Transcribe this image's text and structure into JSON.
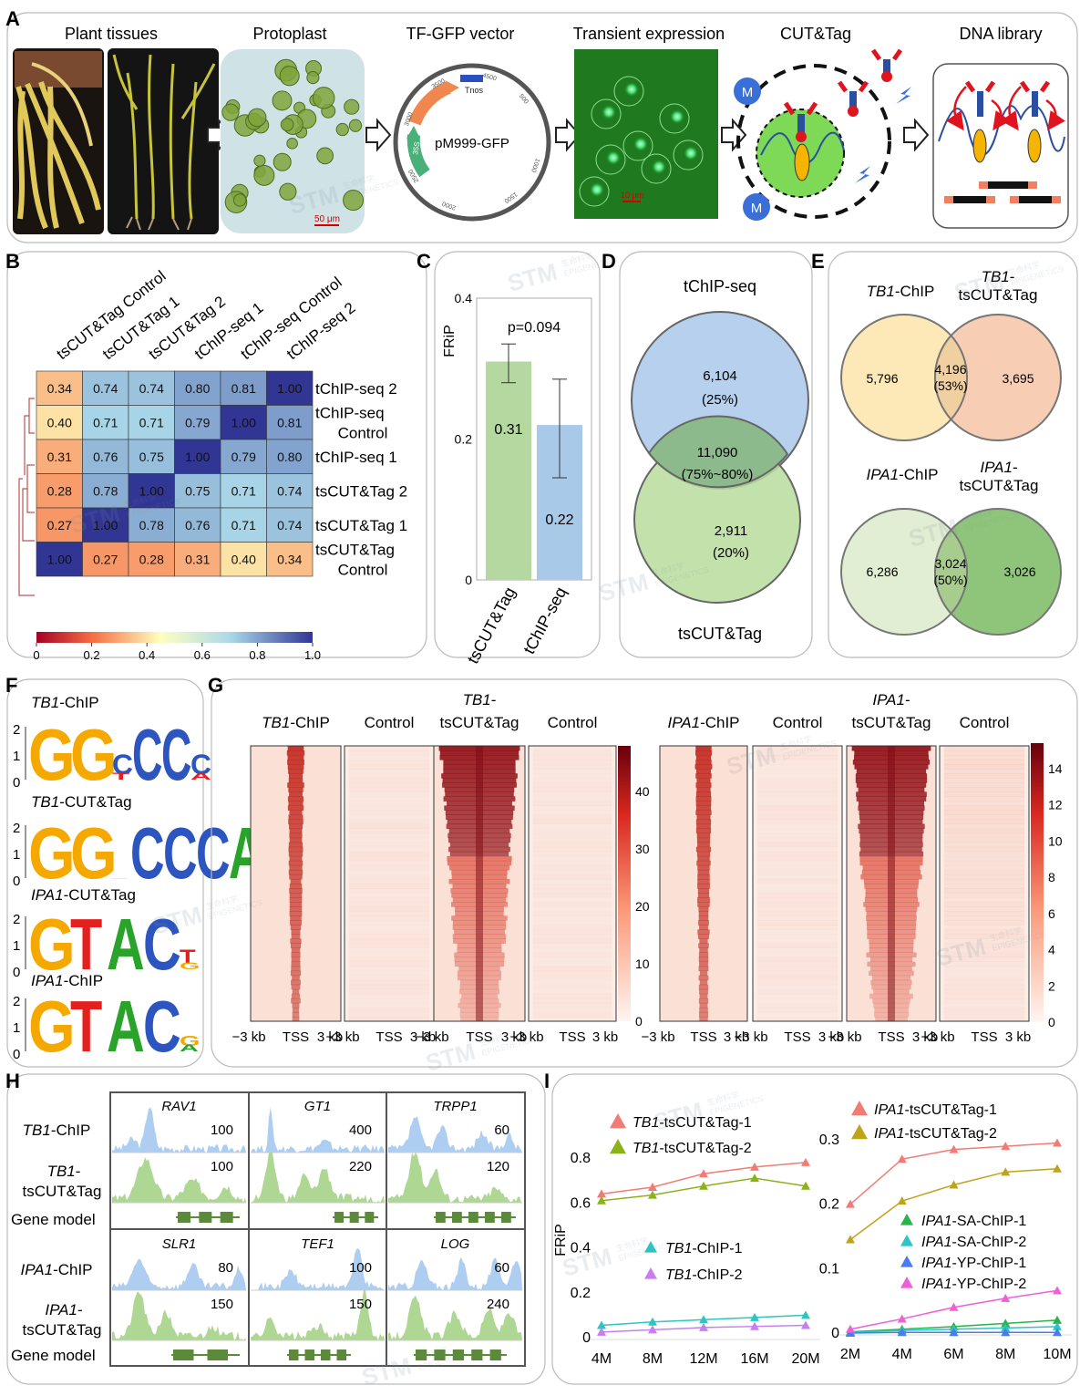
{
  "panelA": {
    "letter": "A",
    "steps": [
      "Plant tissues",
      "Protoplast",
      "TF-GFP vector",
      "Transient expression",
      "CUT&Tag",
      "DNA library"
    ],
    "vector_name": "pM999-GFP",
    "vector_features": [
      "GFP",
      "Tnos",
      "35S"
    ],
    "vector_ticks": [
      "4500",
      "500",
      "1000",
      "1500",
      "2000",
      "2500",
      "3000",
      "3500"
    ],
    "scale_protoplast": "50 μm",
    "scale_expression": "10 μm",
    "bead_label": "M"
  },
  "panelB": {
    "letter": "B",
    "labels": [
      "tsCUT&Tag Control",
      "tsCUT&Tag 1",
      "tsCUT&Tag 2",
      "tChIP-seq 1",
      "tChIP-seq Control",
      "tChIP-seq 2"
    ],
    "row_labels": [
      [
        "tChIP-seq 2"
      ],
      [
        "tChIP-seq",
        "Control"
      ],
      [
        "tChIP-seq 1"
      ],
      [
        "tsCUT&Tag 2"
      ],
      [
        "tsCUT&Tag 1"
      ],
      [
        "tsCUT&Tag",
        "Control"
      ]
    ],
    "matrix": [
      [
        "0.34",
        "0.74",
        "0.74",
        "0.80",
        "0.81",
        "1.00"
      ],
      [
        "0.40",
        "0.71",
        "0.71",
        "0.79",
        "1.00",
        "0.81"
      ],
      [
        "0.31",
        "0.76",
        "0.75",
        "1.00",
        "0.79",
        "0.80"
      ],
      [
        "0.28",
        "0.78",
        "1.00",
        "0.75",
        "0.71",
        "0.74"
      ],
      [
        "0.27",
        "1.00",
        "0.78",
        "0.76",
        "0.71",
        "0.74"
      ],
      [
        "1.00",
        "0.27",
        "0.28",
        "0.31",
        "0.40",
        "0.34"
      ]
    ],
    "colorbar_ticks": [
      "0",
      "0.2",
      "0.4",
      "0.6",
      "0.8",
      "1.0"
    ]
  },
  "panelC": {
    "letter": "C",
    "ylabel": "FRiP",
    "yticks": [
      "0",
      "0.2",
      "0.4"
    ],
    "pvalue": "p=0.094",
    "categories": [
      "tsCUT&Tag",
      "tChIP-seq"
    ],
    "value_labels": [
      "0.31",
      "0.22"
    ]
  },
  "panelD": {
    "letter": "D",
    "top_label": "tChIP-seq",
    "bottom_label": "tsCUT&Tag",
    "top_only": [
      "6,104",
      "(25%)"
    ],
    "overlap": [
      "11,090",
      "(75%~80%)"
    ],
    "bottom_only": [
      "2,911",
      "(20%)"
    ]
  },
  "panelE": {
    "letter": "E",
    "tb1_left_label": [
      "TB1",
      "-ChIP"
    ],
    "tb1_right_label": [
      "TB1",
      "-",
      "tsCUT&Tag"
    ],
    "tb1_values": [
      "5,796",
      "4,196",
      "(53%)",
      "3,695"
    ],
    "ipa1_left_label": [
      "IPA1",
      "-ChIP"
    ],
    "ipa1_right_label": [
      "IPA1",
      "-",
      "tsCUT&Tag"
    ],
    "ipa1_values": [
      "6,286",
      "3,024",
      "(50%)",
      "3,026"
    ]
  },
  "panelF": {
    "letter": "F",
    "motifs": [
      {
        "gene": "TB1",
        "suffix": "-ChIP"
      },
      {
        "gene": "TB1",
        "suffix": "-CUT&Tag"
      },
      {
        "gene": "IPA1",
        "suffix": "-CUT&Tag"
      },
      {
        "gene": "IPA1",
        "suffix": "-ChIP"
      }
    ],
    "yticks": [
      "2",
      "1",
      "0"
    ]
  },
  "panelG": {
    "letter": "G",
    "columns": [
      {
        "gene": "TB1",
        "suffix": "-ChIP"
      },
      {
        "gene": "",
        "suffix": "Control"
      },
      {
        "gene": "TB1",
        "suffix": "-",
        "line2": "tsCUT&Tag"
      },
      {
        "gene": "",
        "suffix": "Control"
      },
      {
        "gene": "IPA1",
        "suffix": "-ChIP"
      },
      {
        "gene": "",
        "suffix": "Control"
      },
      {
        "gene": "IPA1",
        "suffix": "-",
        "line2": "tsCUT&Tag"
      },
      {
        "gene": "",
        "suffix": "Control"
      }
    ],
    "xticks": [
      "−3 kb",
      "TSS",
      "3 kb"
    ],
    "colorbar1_ticks": [
      "0",
      "10",
      "20",
      "30",
      "40"
    ],
    "colorbar2_ticks": [
      "0",
      "2",
      "4",
      "6",
      "8",
      "10",
      "12",
      "14"
    ]
  },
  "panelH": {
    "letter": "H",
    "rows_top": [
      {
        "gene": "TB1",
        "suffix": "-ChIP"
      },
      {
        "gene": "TB1",
        "suffix": "-",
        "line2": "tsCUT&Tag"
      },
      {
        "gene": "",
        "suffix": "Gene model"
      }
    ],
    "rows_bottom": [
      {
        "gene": "IPA1",
        "suffix": "-ChIP"
      },
      {
        "gene": "IPA1",
        "suffix": "-",
        "line2": "tsCUT&Tag"
      },
      {
        "gene": "",
        "suffix": "Gene model"
      }
    ],
    "genes": [
      "RAV1",
      "GT1",
      "TRPP1",
      "SLR1",
      "TEF1",
      "LOG"
    ],
    "chip_scales": [
      "100",
      "400",
      "60",
      "80",
      "100",
      "60"
    ],
    "cut_scales": [
      "100",
      "220",
      "120",
      "150",
      "150",
      "240"
    ]
  },
  "panelI": {
    "letter": "I",
    "ylabel": "FRiP",
    "chart_data": [
      {
        "type": "line",
        "x": [
          "4M",
          "8M",
          "12M",
          "16M",
          "20M"
        ],
        "ylim": [
          0,
          0.8
        ],
        "yticks": [
          "0",
          "0.2",
          "0.4",
          "0.6",
          "0.8"
        ],
        "series": [
          {
            "gene": "TB1",
            "name": "-tsCUT&Tag-1",
            "color": "#f07c75",
            "values": [
              0.64,
              0.67,
              0.73,
              0.76,
              0.78
            ]
          },
          {
            "gene": "TB1",
            "name": "-tsCUT&Tag-2",
            "color": "#8cb21b",
            "values": [
              0.61,
              0.635,
              0.675,
              0.71,
              0.675
            ]
          },
          {
            "gene": "TB1",
            "name": "-ChIP-1",
            "color": "#2ec4c4",
            "values": [
              0.055,
              0.07,
              0.08,
              0.09,
              0.1
            ]
          },
          {
            "gene": "TB1",
            "name": "-ChIP-2",
            "color": "#c77ef0",
            "values": [
              0.025,
              0.035,
              0.045,
              0.05,
              0.055
            ]
          }
        ]
      },
      {
        "type": "line",
        "x": [
          "2M",
          "4M",
          "6M",
          "8M",
          "10M"
        ],
        "ylim": [
          0,
          0.3
        ],
        "yticks": [
          "0",
          "0.1",
          "0.2",
          "0.3"
        ],
        "series": [
          {
            "gene": "IPA1",
            "name": "-tsCUT&Tag-1",
            "color": "#f07c75",
            "values": [
              0.2,
              0.27,
              0.285,
              0.29,
              0.295
            ]
          },
          {
            "gene": "IPA1",
            "name": "-tsCUT&Tag-2",
            "color": "#bfa318",
            "values": [
              0.145,
              0.205,
              0.23,
              0.25,
              0.255
            ]
          },
          {
            "gene": "IPA1",
            "name": "-SA-ChIP-1",
            "color": "#29b34a",
            "values": [
              0.002,
              0.006,
              0.01,
              0.015,
              0.02
            ]
          },
          {
            "gene": "IPA1",
            "name": "-SA-ChIP-2",
            "color": "#2ec4c4",
            "values": [
              0.001,
              0.004,
              0.006,
              0.008,
              0.01
            ]
          },
          {
            "gene": "IPA1",
            "name": "-YP-ChIP-1",
            "color": "#4a7cf0",
            "values": [
              0.0,
              0.001,
              0.001,
              0.001,
              0.001
            ]
          },
          {
            "gene": "IPA1",
            "name": "-YP-ChIP-2",
            "color": "#ee5fd8",
            "values": [
              0.006,
              0.022,
              0.04,
              0.054,
              0.066
            ]
          }
        ]
      }
    ]
  },
  "watermark": {
    "brand": "STM",
    "sub": "EPIGENETICS",
    "cn": "生命科学"
  }
}
